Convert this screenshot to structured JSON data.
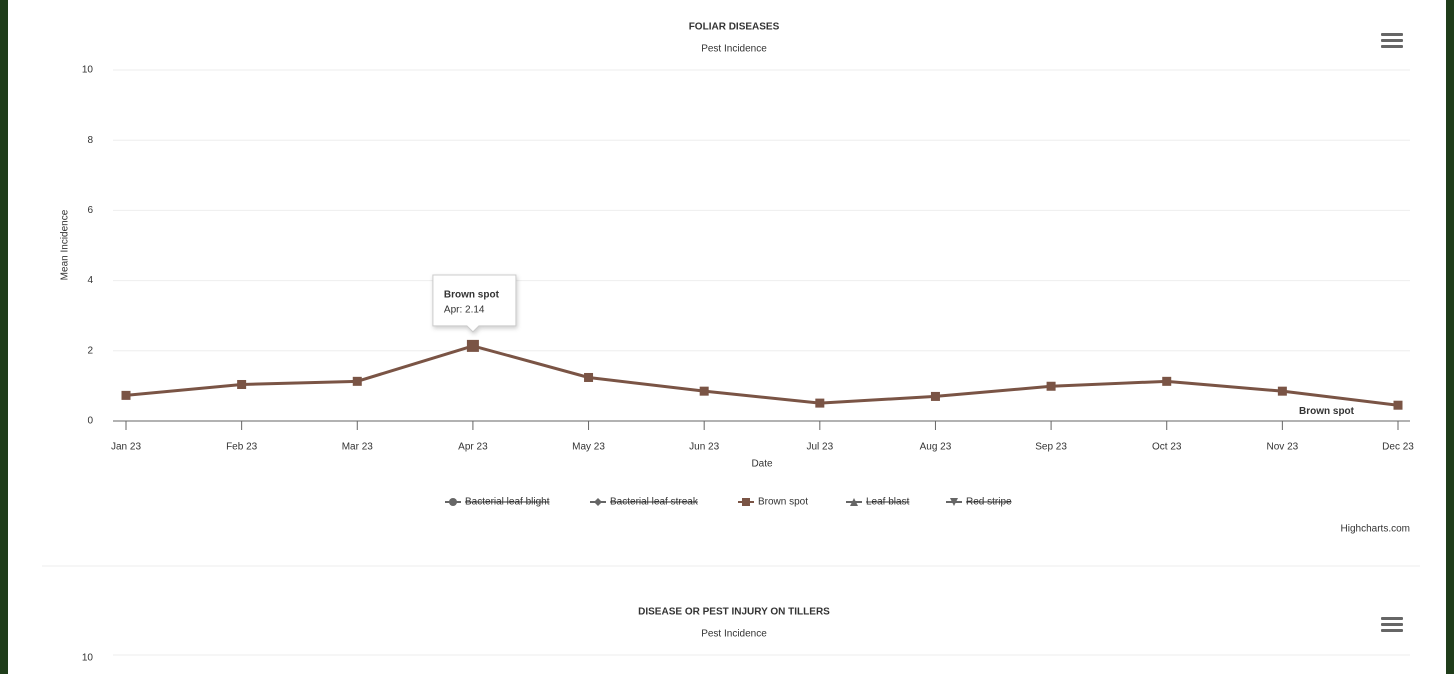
{
  "chart_data": [
    {
      "type": "line",
      "title": "FOLIAR DISEASES",
      "subtitle": "Pest Incidence",
      "y_label": "Mean Incidence",
      "x_label": "Date",
      "categories": [
        "Jan 23",
        "Feb 23",
        "Mar 23",
        "Apr 23",
        "May 23",
        "Jun 23",
        "Jul 23",
        "Aug 23",
        "Sep 23",
        "Oct 23",
        "Nov 23",
        "Dec 23"
      ],
      "ylim": [
        0,
        10
      ],
      "yticks": [
        0,
        2,
        4,
        6,
        8,
        10
      ],
      "grid": true,
      "series": [
        {
          "name": "Bacterial leaf blight",
          "color": "#666666",
          "marker": "circle",
          "visible": false,
          "values": [
            null,
            null,
            null,
            null,
            null,
            null,
            null,
            null,
            null,
            null,
            null,
            null
          ]
        },
        {
          "name": "Bacterial leaf streak",
          "color": "#666666",
          "marker": "diamond",
          "visible": false,
          "values": [
            null,
            null,
            null,
            null,
            null,
            null,
            null,
            null,
            null,
            null,
            null,
            null
          ]
        },
        {
          "name": "Brown spot",
          "color": "#7a5445",
          "marker": "square",
          "visible": true,
          "values": [
            0.73,
            1.04,
            1.13,
            2.14,
            1.24,
            0.85,
            0.51,
            0.7,
            0.99,
            1.13,
            0.85,
            0.45
          ]
        },
        {
          "name": "Leaf blast",
          "color": "#666666",
          "marker": "triangle",
          "visible": false,
          "values": [
            null,
            null,
            null,
            null,
            null,
            null,
            null,
            null,
            null,
            null,
            null,
            null
          ]
        },
        {
          "name": "Red stripe",
          "color": "#666666",
          "marker": "triangle-down",
          "visible": false,
          "values": [
            null,
            null,
            null,
            null,
            null,
            null,
            null,
            null,
            null,
            null,
            null,
            null
          ]
        }
      ],
      "tooltip": {
        "title": "Brown spot",
        "text": "Apr: 2.14"
      },
      "credits": "Highcharts.com"
    },
    {
      "type": "line",
      "title": "DISEASE OR PEST INJURY ON TILLERS",
      "subtitle": "Pest Incidence",
      "yticks": [
        10
      ],
      "grid": true
    }
  ]
}
